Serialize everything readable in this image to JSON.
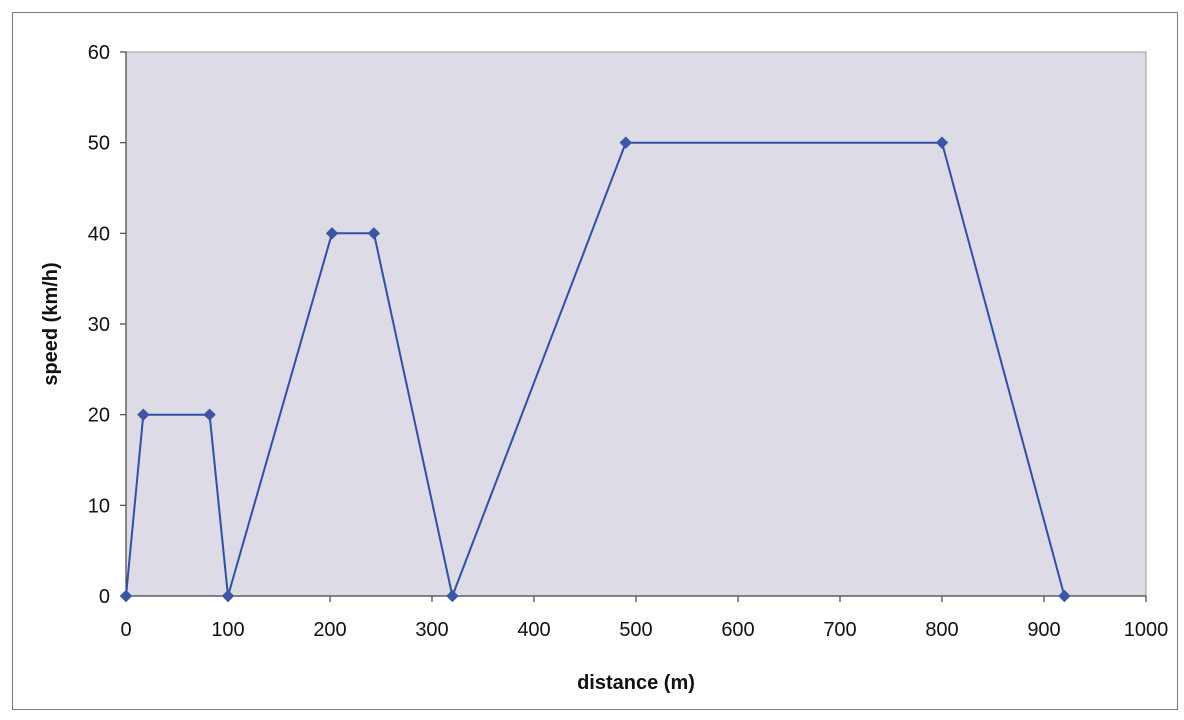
{
  "chart_data": {
    "type": "line",
    "title": "",
    "xlabel": "distance (m)",
    "ylabel": "speed (km/h)",
    "xlim": [
      0,
      1000
    ],
    "ylim": [
      0,
      60
    ],
    "xticks": [
      0,
      100,
      200,
      300,
      400,
      500,
      600,
      700,
      800,
      900,
      1000
    ],
    "yticks": [
      0,
      10,
      20,
      30,
      40,
      50,
      60
    ],
    "grid": false,
    "legend": "none",
    "series": [
      {
        "x": [
          0,
          17,
          82,
          100,
          202,
          243,
          320,
          490,
          800,
          920
        ],
        "y": [
          0,
          20,
          20,
          0,
          40,
          40,
          0,
          50,
          50,
          0
        ],
        "color": "#2f4fa8",
        "marker": "diamond"
      }
    ],
    "colors": {
      "plot_background": "#dcdbe6",
      "line": "#2f4fa8",
      "marker": "#3a57a6",
      "axis": "#444444"
    }
  }
}
